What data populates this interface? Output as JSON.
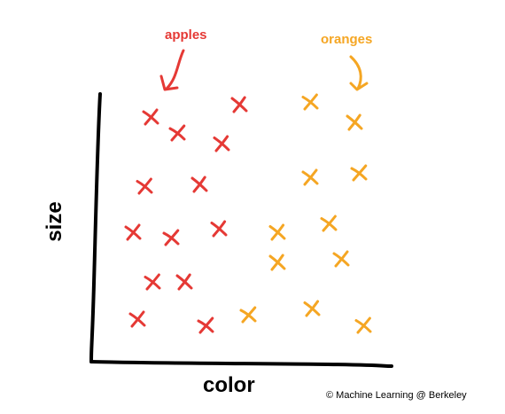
{
  "chart_data": {
    "type": "scatter",
    "xlabel": "color",
    "ylabel": "size",
    "title": "",
    "grid": false,
    "series": [
      {
        "name": "apples",
        "color": "#e53935",
        "marker": "x",
        "points": [
          [
            270,
            118
          ],
          [
            170,
            132
          ],
          [
            200,
            150
          ],
          [
            250,
            162
          ],
          [
            163,
            210
          ],
          [
            225,
            208
          ],
          [
            150,
            262
          ],
          [
            193,
            268
          ],
          [
            247,
            258
          ],
          [
            172,
            318
          ],
          [
            208,
            318
          ],
          [
            155,
            360
          ],
          [
            232,
            367
          ]
        ]
      },
      {
        "name": "oranges",
        "color": "#f5a623",
        "marker": "x",
        "points": [
          [
            350,
            115
          ],
          [
            400,
            138
          ],
          [
            350,
            200
          ],
          [
            405,
            195
          ],
          [
            313,
            262
          ],
          [
            371,
            252
          ],
          [
            313,
            296
          ],
          [
            385,
            292
          ],
          [
            280,
            355
          ],
          [
            352,
            348
          ],
          [
            410,
            367
          ]
        ]
      }
    ],
    "annotations": [
      {
        "text": "apples",
        "target": "apples",
        "color": "#e53935"
      },
      {
        "text": "oranges",
        "target": "oranges",
        "color": "#f5a623"
      }
    ],
    "credit": "© Machine Learning @ Berkeley"
  }
}
